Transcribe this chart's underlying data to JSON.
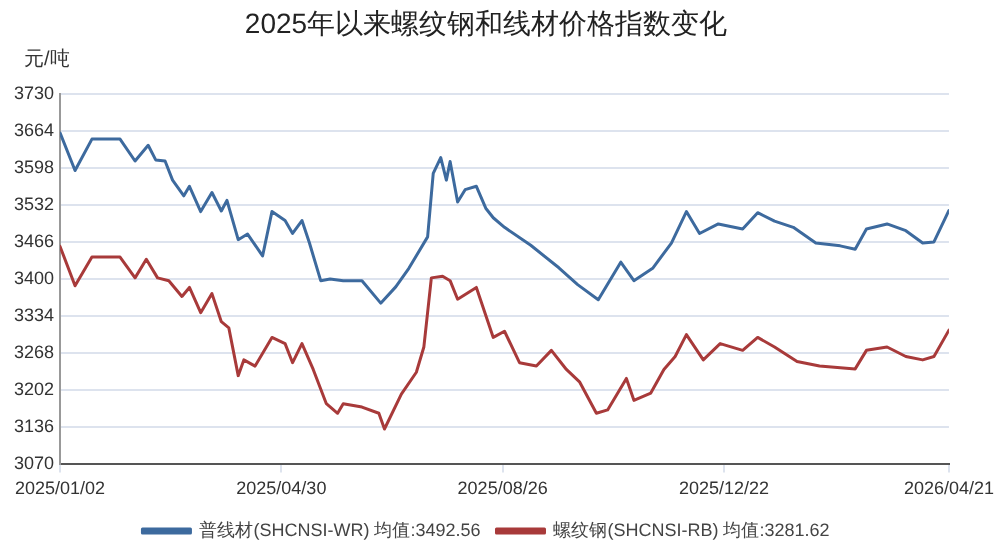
{
  "chart_data": {
    "type": "line",
    "title": "2025年以来螺纹钢和线材价格指数变化",
    "ylabel": "元/吨",
    "xlim": [
      "2025-01-02",
      "2026-04-21"
    ],
    "xticks": [
      {
        "value": "2025-01-02",
        "label": "2025/01/02"
      },
      {
        "value": "2025-04-30",
        "label": "2025/04/30"
      },
      {
        "value": "2025-08-26",
        "label": "2025/08/26"
      },
      {
        "value": "2025-12-22",
        "label": "2025/12/22"
      },
      {
        "value": "2026-04-21",
        "label": "2026/04/21"
      }
    ],
    "ylim": [
      3070,
      3730
    ],
    "yticks": [
      3070,
      3136,
      3202,
      3268,
      3334,
      3400,
      3466,
      3532,
      3598,
      3664,
      3730
    ],
    "grid": "y",
    "legend": "bottom",
    "marker": "none",
    "line_style": "solid",
    "series": [
      {
        "name": "普线材(SHCNSI-WR) 均值:3492.56",
        "color": "#3d6a9e",
        "x": [
          "2025-01-02",
          "2025-01-10",
          "2025-01-19",
          "2025-02-03",
          "2025-02-11",
          "2025-02-18",
          "2025-02-22",
          "2025-02-27",
          "2025-03-03",
          "2025-03-09",
          "2025-03-12",
          "2025-03-18",
          "2025-03-24",
          "2025-03-29",
          "2025-04-01",
          "2025-04-07",
          "2025-04-12",
          "2025-04-20",
          "2025-04-25",
          "2025-05-02",
          "2025-05-06",
          "2025-05-11",
          "2025-05-15",
          "2025-05-21",
          "2025-05-26",
          "2025-06-02",
          "2025-06-12",
          "2025-06-22",
          "2025-06-30",
          "2025-07-07",
          "2025-07-17",
          "2025-07-20",
          "2025-07-24",
          "2025-07-27",
          "2025-07-29",
          "2025-08-02",
          "2025-08-06",
          "2025-08-12",
          "2025-08-17",
          "2025-08-21",
          "2025-08-27",
          "2025-09-10",
          "2025-09-25",
          "2025-10-05",
          "2025-10-16",
          "2025-10-28",
          "2025-11-04",
          "2025-11-14",
          "2025-11-24",
          "2025-12-02",
          "2025-12-09",
          "2025-12-19",
          "2026-01-01",
          "2026-01-09",
          "2026-01-18",
          "2026-01-28",
          "2026-02-09",
          "2026-02-22",
          "2026-03-02",
          "2026-03-08",
          "2026-03-19",
          "2026-03-29",
          "2026-04-07",
          "2026-04-13",
          "2026-04-21"
        ],
        "values": [
          3660,
          3593,
          3649,
          3649,
          3610,
          3638,
          3612,
          3610,
          3576,
          3548,
          3565,
          3520,
          3554,
          3521,
          3540,
          3470,
          3480,
          3441,
          3520,
          3504,
          3481,
          3504,
          3464,
          3397,
          3400,
          3397,
          3397,
          3357,
          3386,
          3419,
          3475,
          3588,
          3616,
          3576,
          3609,
          3537,
          3559,
          3565,
          3526,
          3509,
          3492,
          3460,
          3420,
          3390,
          3363,
          3430,
          3397,
          3419,
          3464,
          3520,
          3481,
          3498,
          3489,
          3518,
          3503,
          3492,
          3464,
          3459,
          3453,
          3489,
          3498,
          3486,
          3464,
          3466,
          3522
        ]
      },
      {
        "name": "螺纹钢(SHCNSI-RB) 均值:3281.62",
        "color": "#a83a3a",
        "x": [
          "2025-01-02",
          "2025-01-10",
          "2025-01-19",
          "2025-02-03",
          "2025-02-11",
          "2025-02-17",
          "2025-02-23",
          "2025-03-01",
          "2025-03-08",
          "2025-03-12",
          "2025-03-18",
          "2025-03-24",
          "2025-03-29",
          "2025-04-02",
          "2025-04-07",
          "2025-04-10",
          "2025-04-16",
          "2025-04-25",
          "2025-05-02",
          "2025-05-06",
          "2025-05-11",
          "2025-05-17",
          "2025-05-24",
          "2025-05-30",
          "2025-06-02",
          "2025-06-12",
          "2025-06-21",
          "2025-06-24",
          "2025-07-03",
          "2025-07-11",
          "2025-07-15",
          "2025-07-19",
          "2025-07-25",
          "2025-07-29",
          "2025-08-02",
          "2025-08-12",
          "2025-08-21",
          "2025-08-27",
          "2025-09-04",
          "2025-09-13",
          "2025-09-21",
          "2025-09-29",
          "2025-10-06",
          "2025-10-15",
          "2025-10-21",
          "2025-10-31",
          "2025-11-04",
          "2025-11-13",
          "2025-11-20",
          "2025-11-26",
          "2025-12-02",
          "2025-12-11",
          "2025-12-20",
          "2026-01-01",
          "2026-01-09",
          "2026-01-18",
          "2026-01-30",
          "2026-02-11",
          "2026-03-02",
          "2026-03-08",
          "2026-03-19",
          "2026-03-29",
          "2026-04-07",
          "2026-04-13",
          "2026-04-21"
        ],
        "values": [
          3458,
          3388,
          3439,
          3439,
          3402,
          3435,
          3402,
          3397,
          3369,
          3385,
          3340,
          3374,
          3324,
          3313,
          3228,
          3256,
          3245,
          3296,
          3285,
          3251,
          3285,
          3239,
          3178,
          3161,
          3178,
          3172,
          3161,
          3133,
          3195,
          3234,
          3279,
          3402,
          3405,
          3397,
          3364,
          3385,
          3296,
          3307,
          3251,
          3245,
          3273,
          3239,
          3217,
          3161,
          3167,
          3223,
          3184,
          3197,
          3239,
          3262,
          3301,
          3256,
          3285,
          3273,
          3296,
          3279,
          3253,
          3245,
          3240,
          3273,
          3279,
          3262,
          3256,
          3262,
          3309
        ]
      }
    ]
  }
}
